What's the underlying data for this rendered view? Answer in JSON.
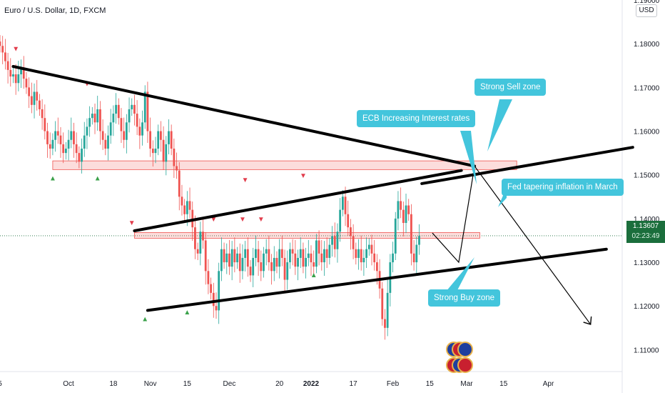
{
  "header": {
    "title": "Euro / U.S. Dollar, 1D, FXCM",
    "currency": "USD"
  },
  "price_tag": {
    "price": "1.13607",
    "countdown": "02:23:49"
  },
  "annotations": {
    "sell_zone": "Strong Sell zone",
    "ecb": "ECB Increasing Interest rates",
    "fed": "Fed tapering inflation in March",
    "buy_zone": "Strong Buy zone"
  },
  "colors": {
    "bull": "#26a69a",
    "bear": "#ef5350",
    "callout": "#43c5dc",
    "line": "#000000"
  },
  "chart_data": {
    "type": "candlestick",
    "symbol": "Euro / U.S. Dollar",
    "interval": "1D",
    "ylim": [
      1.105,
      1.19
    ],
    "y_ticks": [
      "1.11000",
      "1.12000",
      "1.13000",
      "1.14000",
      "1.15000",
      "1.16000",
      "1.17000",
      "1.18000",
      "1.19000"
    ],
    "x_ticks": [
      {
        "label": "5",
        "day": 0
      },
      {
        "label": "Oct",
        "day": 26
      },
      {
        "label": "18",
        "day": 43
      },
      {
        "label": "Nov",
        "day": 57
      },
      {
        "label": "15",
        "day": 71
      },
      {
        "label": "Dec",
        "day": 87
      },
      {
        "label": "20",
        "day": 106
      },
      {
        "label": "2022",
        "day": 118
      },
      {
        "label": "17",
        "day": 134
      },
      {
        "label": "Feb",
        "day": 149
      },
      {
        "label": "15",
        "day": 163
      },
      {
        "label": "Mar",
        "day": 177
      },
      {
        "label": "15",
        "day": 191
      },
      {
        "label": "Apr",
        "day": 208
      }
    ],
    "xlim": [
      0,
      236
    ],
    "current_price": 1.13607,
    "closes": [
      1.1795,
      1.178,
      1.176,
      1.174,
      1.1725,
      1.173,
      1.171,
      1.173,
      1.1745,
      1.172,
      1.17,
      1.168,
      1.166,
      1.169,
      1.167,
      1.165,
      1.163,
      1.16,
      1.157,
      1.156,
      1.158,
      1.16,
      1.159,
      1.157,
      1.155,
      1.156,
      1.158,
      1.16,
      1.157,
      1.155,
      1.153,
      1.156,
      1.159,
      1.161,
      1.163,
      1.164,
      1.162,
      1.165,
      1.16,
      1.158,
      1.156,
      1.159,
      1.162,
      1.164,
      1.166,
      1.163,
      1.16,
      1.158,
      1.162,
      1.165,
      1.166,
      1.164,
      1.161,
      1.159,
      1.162,
      1.169,
      1.16,
      1.156,
      1.155,
      1.156,
      1.16,
      1.158,
      1.153,
      1.157,
      1.16,
      1.156,
      1.152,
      1.151,
      1.145,
      1.143,
      1.141,
      1.144,
      1.142,
      1.138,
      1.133,
      1.132,
      1.137,
      1.135,
      1.128,
      1.125,
      1.123,
      1.12,
      1.119,
      1.128,
      1.133,
      1.13,
      1.132,
      1.129,
      1.133,
      1.13,
      1.132,
      1.128,
      1.131,
      1.133,
      1.129,
      1.127,
      1.131,
      1.133,
      1.13,
      1.128,
      1.132,
      1.133,
      1.13,
      1.128,
      1.131,
      1.129,
      1.133,
      1.131,
      1.126,
      1.13,
      1.133,
      1.132,
      1.129,
      1.131,
      1.133,
      1.129,
      1.131,
      1.132,
      1.13,
      1.129,
      1.135,
      1.132,
      1.13,
      1.133,
      1.131,
      1.134,
      1.136,
      1.133,
      1.137,
      1.142,
      1.145,
      1.141,
      1.138,
      1.136,
      1.133,
      1.131,
      1.133,
      1.13,
      1.131,
      1.133,
      1.134,
      1.132,
      1.13,
      1.128,
      1.124,
      1.117,
      1.115,
      1.123,
      1.13,
      1.132,
      1.14,
      1.144,
      1.142,
      1.139,
      1.143,
      1.141,
      1.132,
      1.13,
      1.134,
      1.136
    ],
    "levels": [
      {
        "name": "upper-zone",
        "low": 1.1512,
        "high": 1.1532
      },
      {
        "name": "middle-zone",
        "low": 1.1355,
        "high": 1.1368
      }
    ],
    "trendlines": [
      {
        "name": "descending-resistance",
        "from": [
          5,
          1.1748
        ],
        "to": [
          180,
          1.152
        ]
      },
      {
        "name": "channel-upper",
        "from": [
          51,
          1.1372
        ],
        "to": [
          175,
          1.151
        ]
      },
      {
        "name": "channel-upper-ext",
        "from": [
          160,
          1.148
        ],
        "to": [
          240,
          1.1563
        ]
      },
      {
        "name": "channel-lower",
        "from": [
          56,
          1.119
        ],
        "to": [
          230,
          1.133
        ]
      }
    ],
    "projection": [
      [
        164,
        1.1367
      ],
      [
        174,
        1.13
      ],
      [
        180,
        1.152
      ],
      [
        224,
        1.1158
      ]
    ],
    "bull_signals": [
      [
        20,
        1.1507
      ],
      [
        37,
        1.1507
      ],
      [
        55,
        1.1185
      ],
      [
        71,
        1.12
      ],
      [
        119,
        1.1285
      ]
    ],
    "bear_signals": [
      [
        6,
        1.178
      ],
      [
        33,
        1.17
      ],
      [
        50,
        1.1382
      ],
      [
        81,
        1.139
      ],
      [
        92,
        1.139
      ],
      [
        93,
        1.148
      ],
      [
        99,
        1.139
      ],
      [
        115,
        1.149
      ]
    ]
  }
}
